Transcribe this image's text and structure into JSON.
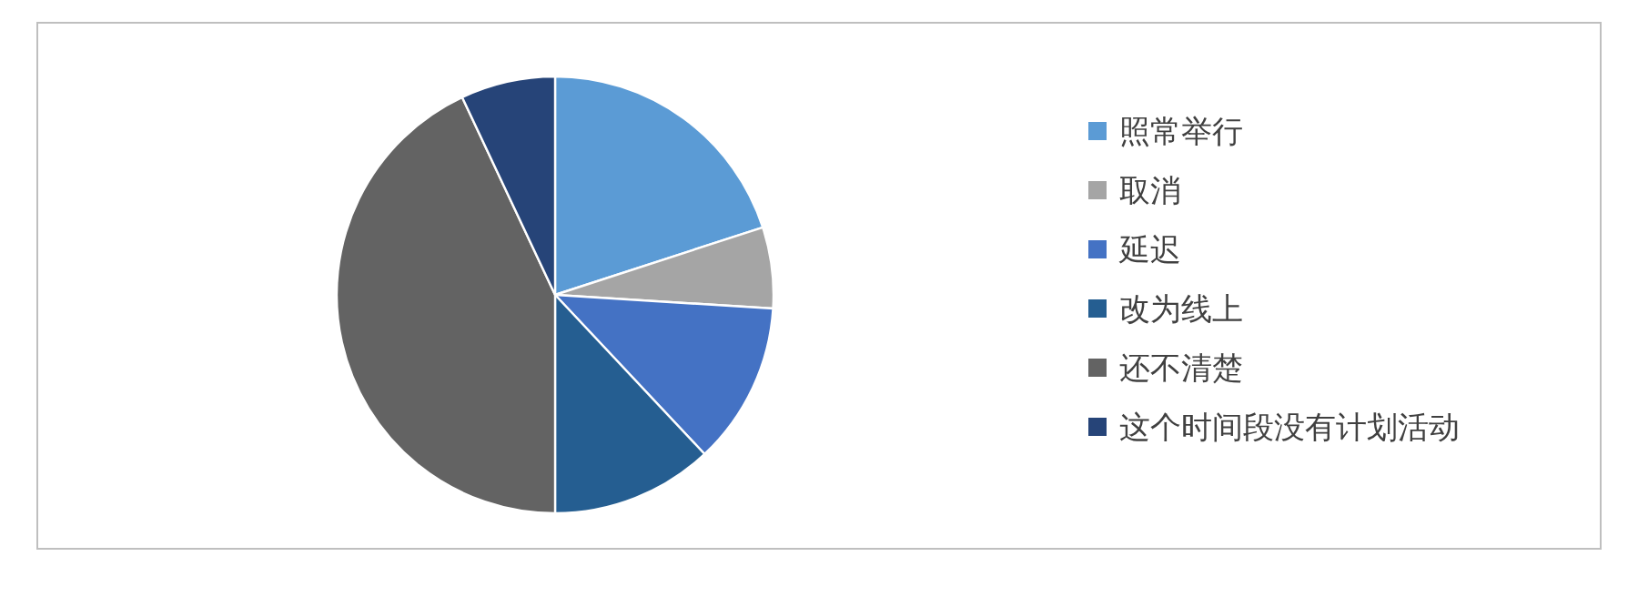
{
  "chart_data": {
    "type": "pie",
    "categories": [
      "照常举行",
      "取消",
      "延迟",
      "改为线上",
      "还不清楚",
      "这个时间段没有计划活动"
    ],
    "values": [
      20,
      6,
      12,
      12,
      43,
      7
    ],
    "colors": [
      "#5b9bd5",
      "#a5a5a5",
      "#4472c4",
      "#255e91",
      "#636363",
      "#264478"
    ],
    "legend": "right"
  }
}
